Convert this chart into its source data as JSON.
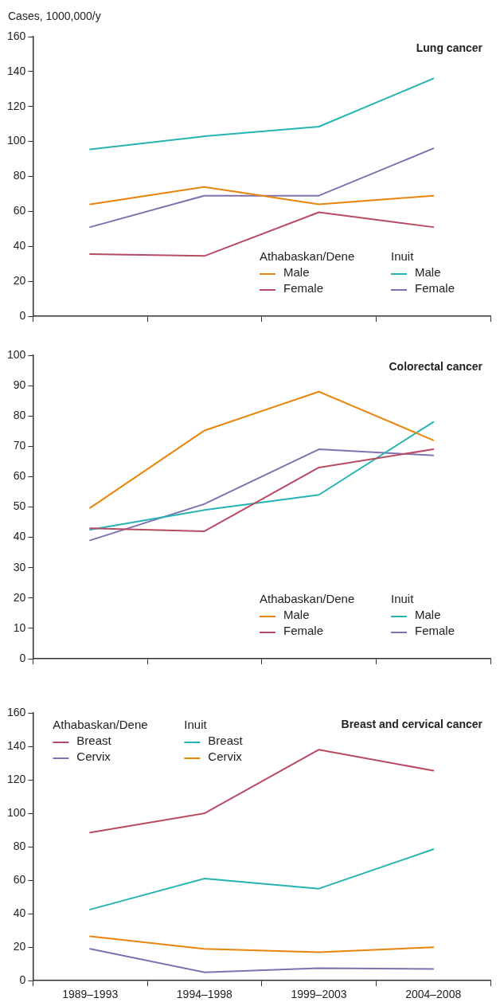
{
  "chart_data": [
    {
      "type": "line",
      "title": "Lung cancer",
      "ylabel": "Cases, 1000,000/y",
      "categories": [
        null,
        null,
        null,
        null
      ],
      "ylim": [
        0,
        160
      ],
      "yticks": [
        0,
        20,
        40,
        60,
        80,
        100,
        120,
        140,
        160
      ],
      "tick_labels": "y",
      "grid": false,
      "legend": "bottom right",
      "marker": "none",
      "annotations": [
        "Athabaskan/Dene",
        "Inuit"
      ],
      "series": [
        {
          "name": "Male",
          "color": "#e8850c",
          "values": [
            64,
            74,
            64,
            69
          ]
        },
        {
          "name": "Female",
          "color": "#b94a64",
          "values": [
            35.5,
            34.5,
            59.5,
            51
          ]
        },
        {
          "name": "Male",
          "color": "#25b3b3",
          "values": [
            95.5,
            103,
            108.5,
            136
          ]
        },
        {
          "name": "Female",
          "color": "#8070b0",
          "values": [
            51,
            69,
            69,
            96
          ]
        }
      ]
    },
    {
      "type": "line",
      "title": "Colorectal cancer",
      "categories": [
        null,
        null,
        null,
        null
      ],
      "ylim": [
        0,
        100
      ],
      "yticks": [
        0,
        10,
        20,
        30,
        40,
        50,
        60,
        70,
        80,
        90,
        100
      ],
      "tick_labels": "y",
      "grid": false,
      "legend": "bottom right",
      "marker": "none",
      "annotations": [
        "Athabaskan/Dene",
        "Inuit"
      ],
      "series": [
        {
          "name": "Male",
          "color": "#e8850c",
          "values": [
            49.7,
            75.2,
            88,
            72
          ]
        },
        {
          "name": "Female",
          "color": "#b94a64",
          "values": [
            43,
            42,
            63,
            69
          ]
        },
        {
          "name": "Male",
          "color": "#25b3b3",
          "values": [
            42.5,
            49,
            54,
            78
          ]
        },
        {
          "name": "Female",
          "color": "#8070b0",
          "values": [
            39,
            51,
            69,
            67
          ]
        }
      ]
    },
    {
      "type": "line",
      "title": "Breast and cervical cancer",
      "categories": [
        "1989–1993",
        "1994–1998",
        "1999–2003",
        "2004–2008"
      ],
      "ylim": [
        0,
        160
      ],
      "yticks": [
        0,
        20,
        40,
        60,
        80,
        100,
        120,
        140,
        160
      ],
      "grid": false,
      "legend": "top left",
      "marker": "none",
      "annotations": [
        "Athabaskan/Dene",
        "Inuit"
      ],
      "series": [
        {
          "name": "Breast",
          "color": "#b94a64",
          "values": [
            88.5,
            100,
            138,
            125.5
          ]
        },
        {
          "name": "Cervix",
          "color": "#8070b0",
          "values": [
            19,
            5,
            7.5,
            7
          ]
        },
        {
          "name": "Breast",
          "color": "#25b3b3",
          "values": [
            42.5,
            61,
            55,
            78.5
          ]
        },
        {
          "name": "Cervix",
          "color": "#e8850c",
          "values": [
            26.5,
            19,
            17,
            20
          ]
        }
      ]
    }
  ]
}
